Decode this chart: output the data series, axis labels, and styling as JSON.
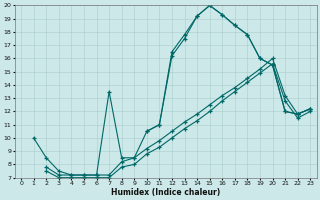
{
  "xlabel": "Humidex (Indice chaleur)",
  "bg_color": "#cce8e8",
  "line_color": "#006868",
  "grid_color": "#aacccc",
  "xlim": [
    -0.5,
    23.5
  ],
  "ylim": [
    7,
    20
  ],
  "xticks": [
    0,
    1,
    2,
    3,
    4,
    5,
    6,
    7,
    8,
    9,
    10,
    11,
    12,
    13,
    14,
    15,
    16,
    17,
    18,
    19,
    20,
    21,
    22,
    23
  ],
  "yticks": [
    7,
    8,
    9,
    10,
    11,
    12,
    13,
    14,
    15,
    16,
    17,
    18,
    19,
    20
  ],
  "line1_x": [
    1,
    2,
    3,
    4,
    5,
    6,
    7,
    8,
    9,
    10,
    11,
    12,
    13,
    14,
    15,
    16,
    17,
    18,
    19,
    20,
    21,
    22,
    23
  ],
  "line1_y": [
    10.0,
    8.5,
    7.5,
    7.2,
    7.2,
    7.2,
    13.5,
    8.5,
    8.5,
    10.5,
    11.0,
    16.2,
    17.5,
    19.2,
    20.0,
    19.3,
    18.5,
    17.8,
    16.0,
    15.5,
    12.0,
    11.8,
    12.2
  ],
  "line2_x": [
    10,
    11,
    12,
    13,
    14,
    15,
    16,
    17,
    18,
    19,
    20,
    21,
    22,
    23
  ],
  "line2_y": [
    10.5,
    11.0,
    16.5,
    17.8,
    19.2,
    20.0,
    19.3,
    18.5,
    17.8,
    16.0,
    15.5,
    12.0,
    11.8,
    12.2
  ],
  "line3_x": [
    2,
    3,
    4,
    5,
    6,
    7,
    8,
    9,
    10,
    11,
    12,
    13,
    14,
    15,
    16,
    17,
    18,
    19,
    20,
    21,
    22,
    23
  ],
  "line3_y": [
    7.8,
    7.2,
    7.2,
    7.2,
    7.2,
    7.2,
    8.2,
    8.5,
    9.2,
    9.8,
    10.5,
    11.2,
    11.8,
    12.5,
    13.2,
    13.8,
    14.5,
    15.2,
    16.0,
    13.2,
    11.8,
    12.2
  ],
  "line4_x": [
    2,
    3,
    4,
    5,
    6,
    7,
    8,
    9,
    10,
    11,
    12,
    13,
    14,
    15,
    16,
    17,
    18,
    19,
    20,
    21,
    22,
    23
  ],
  "line4_y": [
    7.5,
    7.0,
    7.0,
    7.0,
    7.0,
    7.0,
    7.8,
    8.0,
    8.8,
    9.3,
    10.0,
    10.7,
    11.3,
    12.0,
    12.8,
    13.5,
    14.2,
    14.9,
    15.6,
    12.8,
    11.5,
    12.0
  ]
}
